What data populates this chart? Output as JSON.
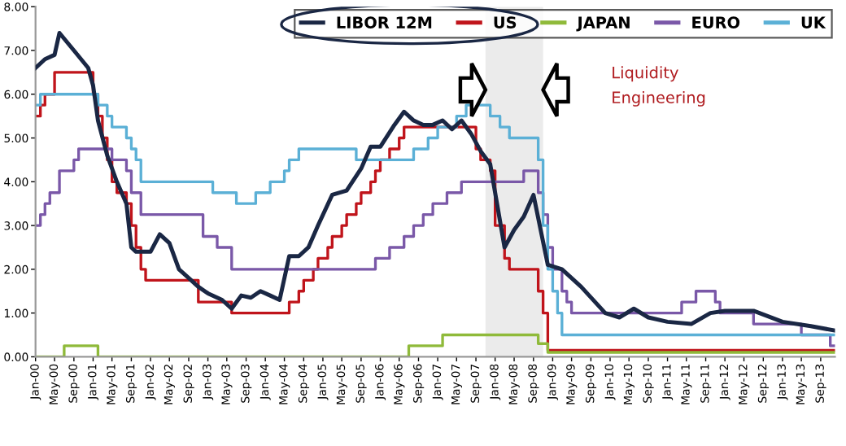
{
  "chart_data": {
    "type": "line",
    "series": [
      {
        "name": "LIBOR 12M",
        "color": "#1a2744",
        "x": [
          "2000-01",
          "2000-03",
          "2000-05",
          "2000-06",
          "2000-09",
          "2000-12",
          "2001-01",
          "2001-02",
          "2001-04",
          "2001-06",
          "2001-08",
          "2001-09",
          "2001-10",
          "2001-12",
          "2002-01",
          "2002-03",
          "2002-05",
          "2002-07",
          "2002-09",
          "2002-11",
          "2003-01",
          "2003-04",
          "2003-06",
          "2003-08",
          "2003-10",
          "2003-12",
          "2004-02",
          "2004-04",
          "2004-06",
          "2004-08",
          "2004-10",
          "2004-12",
          "2005-03",
          "2005-06",
          "2005-09",
          "2005-11",
          "2006-01",
          "2006-04",
          "2006-06",
          "2006-08",
          "2006-10",
          "2006-12",
          "2007-02",
          "2007-04",
          "2007-06",
          "2007-08",
          "2007-10",
          "2007-12",
          "2008-03",
          "2008-05",
          "2008-07",
          "2008-09",
          "2008-12",
          "2009-03",
          "2009-07",
          "2009-12",
          "2010-03",
          "2010-06",
          "2010-09",
          "2011-01",
          "2011-06",
          "2011-10",
          "2012-01",
          "2012-07",
          "2013-01",
          "2013-07",
          "2013-12"
        ],
        "values": [
          6.6,
          6.8,
          6.9,
          7.4,
          7.0,
          6.6,
          6.2,
          5.4,
          4.6,
          4.0,
          3.5,
          2.5,
          2.4,
          2.4,
          2.4,
          2.8,
          2.6,
          2.0,
          1.8,
          1.6,
          1.45,
          1.3,
          1.1,
          1.4,
          1.35,
          1.5,
          1.4,
          1.3,
          2.3,
          2.3,
          2.5,
          3.0,
          3.7,
          3.8,
          4.3,
          4.8,
          4.8,
          5.3,
          5.6,
          5.4,
          5.3,
          5.3,
          5.4,
          5.2,
          5.4,
          5.1,
          4.7,
          4.4,
          2.5,
          2.9,
          3.2,
          3.7,
          2.1,
          2.0,
          1.6,
          1.0,
          0.9,
          1.1,
          0.9,
          0.8,
          0.75,
          1.0,
          1.05,
          1.05,
          0.8,
          0.7,
          0.6
        ]
      },
      {
        "name": "US",
        "color": "#c0141b",
        "type": "step",
        "x": [
          "2000-01",
          "2000-02",
          "2000-03",
          "2000-05",
          "2001-01",
          "2001-02",
          "2001-03",
          "2001-04",
          "2001-05",
          "2001-06",
          "2001-08",
          "2001-09",
          "2001-10",
          "2001-11",
          "2001-12",
          "2002-11",
          "2003-06",
          "2004-06",
          "2004-08",
          "2004-09",
          "2004-11",
          "2004-12",
          "2005-02",
          "2005-03",
          "2005-05",
          "2005-06",
          "2005-08",
          "2005-09",
          "2005-11",
          "2005-12",
          "2006-01",
          "2006-03",
          "2006-05",
          "2006-06",
          "2007-09",
          "2007-10",
          "2007-12",
          "2008-01",
          "2008-03",
          "2008-04",
          "2008-10",
          "2008-11",
          "2008-12",
          "2013-12"
        ],
        "values": [
          5.5,
          5.75,
          6.0,
          6.5,
          6.0,
          5.5,
          5.0,
          4.5,
          4.0,
          3.75,
          3.5,
          3.0,
          2.5,
          2.0,
          1.75,
          1.25,
          1.0,
          1.25,
          1.5,
          1.75,
          2.0,
          2.25,
          2.5,
          2.75,
          3.0,
          3.25,
          3.5,
          3.75,
          4.0,
          4.25,
          4.5,
          4.75,
          5.0,
          5.25,
          4.75,
          4.5,
          4.25,
          3.0,
          2.25,
          2.0,
          1.5,
          1.0,
          0.15,
          0.15
        ]
      },
      {
        "name": "JAPAN",
        "color": "#8fba3a",
        "type": "step",
        "x": [
          "2000-01",
          "2000-07",
          "2001-02",
          "2006-07",
          "2007-02",
          "2008-10",
          "2008-12",
          "2013-12"
        ],
        "values": [
          0.0,
          0.25,
          0.0,
          0.25,
          0.5,
          0.3,
          0.1,
          0.1
        ]
      },
      {
        "name": "EURO",
        "color": "#7a58a8",
        "type": "step",
        "x": [
          "2000-01",
          "2000-02",
          "2000-03",
          "2000-04",
          "2000-06",
          "2000-09",
          "2000-10",
          "2001-05",
          "2001-08",
          "2001-09",
          "2001-11",
          "2002-12",
          "2003-03",
          "2003-06",
          "2005-12",
          "2006-03",
          "2006-06",
          "2006-08",
          "2006-10",
          "2006-12",
          "2007-03",
          "2007-06",
          "2008-07",
          "2008-10",
          "2008-11",
          "2008-12",
          "2009-01",
          "2009-03",
          "2009-04",
          "2009-05",
          "2011-04",
          "2011-07",
          "2011-11",
          "2011-12",
          "2012-07",
          "2013-05",
          "2013-11",
          "2013-12"
        ],
        "values": [
          3.0,
          3.25,
          3.5,
          3.75,
          4.25,
          4.5,
          4.75,
          4.5,
          4.25,
          3.75,
          3.25,
          2.75,
          2.5,
          2.0,
          2.25,
          2.5,
          2.75,
          3.0,
          3.25,
          3.5,
          3.75,
          4.0,
          4.25,
          3.75,
          3.25,
          2.5,
          2.0,
          1.5,
          1.25,
          1.0,
          1.25,
          1.5,
          1.25,
          1.0,
          0.75,
          0.5,
          0.25,
          0.25
        ]
      },
      {
        "name": "UK",
        "color": "#5bb0d6",
        "type": "step",
        "x": [
          "2000-01",
          "2000-02",
          "2001-02",
          "2001-04",
          "2001-05",
          "2001-08",
          "2001-09",
          "2001-10",
          "2001-11",
          "2003-02",
          "2003-07",
          "2003-11",
          "2004-02",
          "2004-05",
          "2004-06",
          "2004-08",
          "2005-08",
          "2006-08",
          "2006-11",
          "2007-01",
          "2007-05",
          "2007-07",
          "2007-12",
          "2008-02",
          "2008-04",
          "2008-10",
          "2008-11",
          "2008-12",
          "2009-01",
          "2009-02",
          "2009-03",
          "2013-12"
        ],
        "values": [
          5.75,
          6.0,
          5.75,
          5.5,
          5.25,
          5.0,
          4.75,
          4.5,
          4.0,
          3.75,
          3.5,
          3.75,
          4.0,
          4.25,
          4.5,
          4.75,
          4.5,
          4.75,
          5.0,
          5.25,
          5.5,
          5.75,
          5.5,
          5.25,
          5.0,
          4.5,
          3.0,
          2.0,
          1.5,
          1.0,
          0.5,
          0.5
        ]
      }
    ],
    "xlim": [
      "2000-01-01",
      "2013-12-01"
    ],
    "xticks": [
      {
        "value": "2000-01",
        "label": "Jan-00"
      },
      {
        "value": "2000-05",
        "label": "May-00"
      },
      {
        "value": "2000-09",
        "label": "Sep-00"
      },
      {
        "value": "2001-01",
        "label": "Jan-01"
      },
      {
        "value": "2001-05",
        "label": "May-01"
      },
      {
        "value": "2001-09",
        "label": "Sep-01"
      },
      {
        "value": "2002-01",
        "label": "Jan-02"
      },
      {
        "value": "2002-05",
        "label": "May-02"
      },
      {
        "value": "2002-09",
        "label": "Sep-02"
      },
      {
        "value": "2003-01",
        "label": "Jan-03"
      },
      {
        "value": "2003-05",
        "label": "May-03"
      },
      {
        "value": "2003-09",
        "label": "Sep-03"
      },
      {
        "value": "2004-01",
        "label": "Jan-04"
      },
      {
        "value": "2004-05",
        "label": "May-04"
      },
      {
        "value": "2004-09",
        "label": "Sep-04"
      },
      {
        "value": "2005-01",
        "label": "Jan-05"
      },
      {
        "value": "2005-05",
        "label": "May-05"
      },
      {
        "value": "2005-09",
        "label": "Sep-05"
      },
      {
        "value": "2006-01",
        "label": "Jan-06"
      },
      {
        "value": "2006-05",
        "label": "May-06"
      },
      {
        "value": "2006-09",
        "label": "Sep-06"
      },
      {
        "value": "2007-01",
        "label": "Jan-07"
      },
      {
        "value": "2007-05",
        "label": "May-07"
      },
      {
        "value": "2007-09",
        "label": "Sep-07"
      },
      {
        "value": "2008-01",
        "label": "Jan-08"
      },
      {
        "value": "2008-05",
        "label": "May-08"
      },
      {
        "value": "2008-09",
        "label": "Sep-08"
      },
      {
        "value": "2009-01",
        "label": "Jan-09"
      },
      {
        "value": "2009-05",
        "label": "May-09"
      },
      {
        "value": "2009-09",
        "label": "Sep-09"
      },
      {
        "value": "2010-01",
        "label": "Jan-10"
      },
      {
        "value": "2010-05",
        "label": "May-10"
      },
      {
        "value": "2010-09",
        "label": "Sep-10"
      },
      {
        "value": "2011-01",
        "label": "Jan-11"
      },
      {
        "value": "2011-05",
        "label": "May-11"
      },
      {
        "value": "2011-09",
        "label": "Sep-11"
      },
      {
        "value": "2012-01",
        "label": "Jan-12"
      },
      {
        "value": "2012-05",
        "label": "May-12"
      },
      {
        "value": "2012-09",
        "label": "Sep-12"
      },
      {
        "value": "2013-01",
        "label": "Jan-13"
      },
      {
        "value": "2013-05",
        "label": "May-13"
      },
      {
        "value": "2013-09",
        "label": "Sep-13"
      }
    ],
    "ylim": [
      0,
      8
    ],
    "yticks": [
      {
        "value": 0,
        "label": "0.00"
      },
      {
        "value": 1,
        "label": "1.00"
      },
      {
        "value": 2,
        "label": "2.00"
      },
      {
        "value": 3,
        "label": "3.00"
      },
      {
        "value": 4,
        "label": "4.00"
      },
      {
        "value": 5,
        "label": "5.00"
      },
      {
        "value": 6,
        "label": "6.00"
      },
      {
        "value": 7,
        "label": "7.00"
      },
      {
        "value": 8,
        "label": "8.00"
      }
    ],
    "bands": [
      {
        "axis": "x",
        "from": "2007-11",
        "to": "2008-11",
        "color": "#ebebeb"
      }
    ],
    "annotations": [
      "Liquidity\nEngineering"
    ],
    "legend": "top right",
    "grid": false
  }
}
